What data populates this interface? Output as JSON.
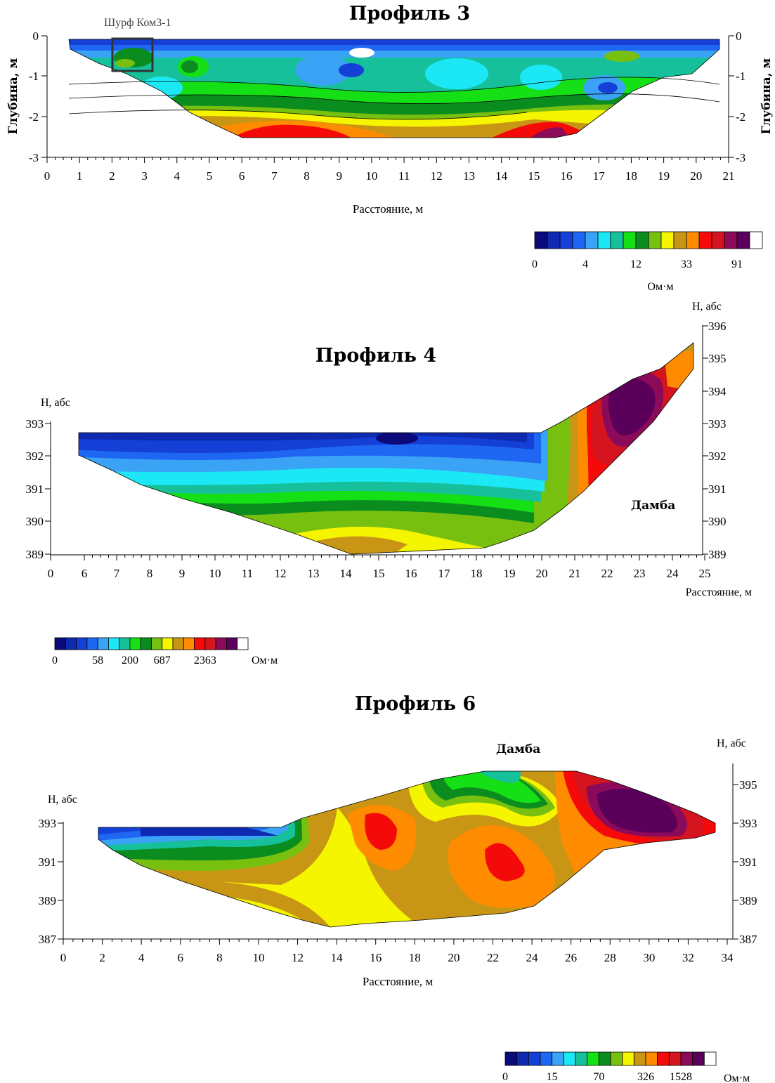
{
  "chart_data": [
    {
      "type": "heatmap",
      "title": "Профиль 3",
      "xlabel": "Расстояние, м",
      "ylabel_left": "Глубина, м",
      "ylabel_right": "Глубина, м",
      "x_ticks": [
        "0",
        "1",
        "2",
        "3",
        "4",
        "5",
        "6",
        "7",
        "8",
        "9",
        "10",
        "11",
        "12",
        "13",
        "14",
        "15",
        "16",
        "17",
        "18",
        "19",
        "20",
        "21"
      ],
      "y_ticks": [
        "0",
        "-1",
        "-2",
        "-3"
      ],
      "xlim": [
        0,
        21
      ],
      "ylim": [
        -3,
        0
      ],
      "annotation": "Шурф Ком3-1",
      "annotation_box": {
        "x": [
          2,
          3.2
        ],
        "depth": [
          0,
          -0.9
        ]
      },
      "colorbar": {
        "labels": [
          "0",
          "4",
          "12",
          "33",
          "91"
        ],
        "unit": "Ом·м",
        "colors": [
          "#0a0a7a",
          "#0e2ab0",
          "#1440d8",
          "#1f66f2",
          "#3aa3f5",
          "#1ce8f5",
          "#16c09a",
          "#15e015",
          "#0a8c1e",
          "#78c010",
          "#f5f500",
          "#c89614",
          "#ff8c00",
          "#f50a0a",
          "#d4141e",
          "#8c0a5a",
          "#5a005a",
          "#ffffff"
        ]
      },
      "contours": [
        {
          "name": "low-resistivity-pockets",
          "x": [
            9.5,
            14.5,
            17.3,
            4.5
          ],
          "depth": [
            -0.9,
            -0.8,
            -1.3,
            -0.8
          ],
          "range": "0-4"
        },
        {
          "name": "mid-layer",
          "depth_range": [
            -1.5,
            -2.0
          ],
          "range": "12-33"
        },
        {
          "name": "deep-high",
          "x_center": 7.5,
          "depth": -2.6,
          "range": "91+"
        },
        {
          "name": "deep-peak",
          "x_center": 15.5,
          "depth": -2.5,
          "range": "91+"
        }
      ]
    },
    {
      "type": "heatmap",
      "title": "Профиль 4",
      "xlabel": "Расстояние, м",
      "ylabel_left": "H, абс",
      "ylabel_right": "H, абс",
      "x_ticks": [
        "0",
        "6",
        "7",
        "8",
        "9",
        "10",
        "11",
        "12",
        "13",
        "14",
        "15",
        "16",
        "17",
        "18",
        "19",
        "20",
        "21",
        "22",
        "23",
        "24",
        "25"
      ],
      "y_ticks_left": [
        "393",
        "392",
        "391",
        "390",
        "389"
      ],
      "y_ticks_right": [
        "396",
        "395",
        "394",
        "393",
        "392",
        "391",
        "390",
        "389"
      ],
      "xlim": [
        5,
        25
      ],
      "ylim": [
        389,
        396
      ],
      "annotation": "Дамба",
      "colorbar": {
        "labels": [
          "0",
          "58",
          "200",
          "687",
          "2363"
        ],
        "unit": "Ом·м",
        "colors": [
          "#0a0a7a",
          "#0e2ab0",
          "#1440d8",
          "#1f66f2",
          "#3aa3f5",
          "#1ce8f5",
          "#16c09a",
          "#15e015",
          "#0a8c1e",
          "#78c010",
          "#f5f500",
          "#c89614",
          "#ff8c00",
          "#f50a0a",
          "#d4141e",
          "#8c0a5a",
          "#5a005a",
          "#ffffff"
        ]
      }
    },
    {
      "type": "heatmap",
      "title": "Профиль 6",
      "xlabel": "Расстояние, м",
      "ylabel_left": "H, абс",
      "ylabel_right": "H, абс",
      "x_ticks": [
        "0",
        "2",
        "4",
        "6",
        "8",
        "10",
        "12",
        "14",
        "16",
        "18",
        "20",
        "22",
        "24",
        "26",
        "28",
        "30",
        "32",
        "34"
      ],
      "y_ticks_left": [
        "393",
        "391",
        "389",
        "387"
      ],
      "y_ticks_right": [
        "395",
        "393",
        "391",
        "389",
        "387"
      ],
      "xlim": [
        0,
        34
      ],
      "ylim": [
        387,
        396
      ],
      "annotation": "Дамба",
      "colorbar": {
        "labels": [
          "0",
          "15",
          "70",
          "326",
          "1528"
        ],
        "unit": "Ом·м",
        "colors": [
          "#0a0a7a",
          "#0e2ab0",
          "#1440d8",
          "#1f66f2",
          "#3aa3f5",
          "#1ce8f5",
          "#16c09a",
          "#15e015",
          "#0a8c1e",
          "#78c010",
          "#f5f500",
          "#c89614",
          "#ff8c00",
          "#f50a0a",
          "#d4141e",
          "#8c0a5a",
          "#5a005a",
          "#ffffff"
        ]
      }
    }
  ]
}
